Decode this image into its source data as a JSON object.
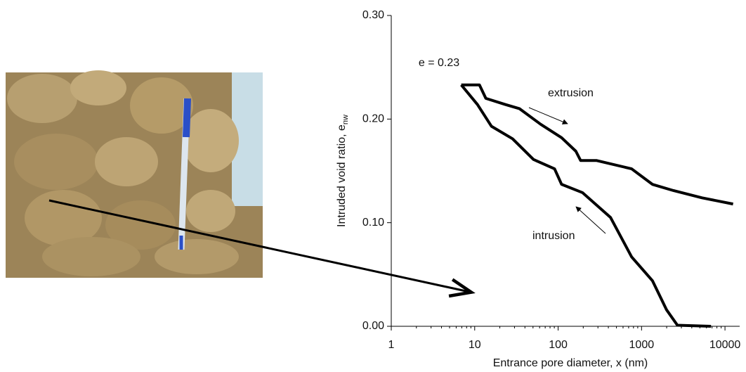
{
  "chart_data": {
    "type": "line",
    "y_label": "Intruded void ratio, e",
    "y_label_sub": "nw",
    "x_label": "Entrance pore diameter, x (nm)",
    "annotations": [
      "e = 0.23",
      "extrusion",
      "intrusion"
    ],
    "log_x": true,
    "xlim": [
      1,
      15000
    ],
    "xticks": [
      1,
      10,
      100,
      1000,
      10000
    ],
    "ylim": [
      0,
      0.3
    ],
    "yticks": [
      {
        "value": 0,
        "label": "0.00"
      },
      {
        "value": 0.1,
        "label": "0.10"
      },
      {
        "value": 0.2,
        "label": "0.20"
      },
      {
        "value": 0.3,
        "label": "0.30"
      }
    ],
    "series": [
      {
        "name": "extrusion",
        "color": "#000000",
        "x": [
          6.9,
          11.4,
          13.6,
          23.4,
          34.5,
          61.7,
          110,
          163,
          186,
          290,
          760,
          1350,
          2410,
          5300,
          12500
        ],
        "values": [
          0.233,
          0.233,
          0.22,
          0.214,
          0.21,
          0.195,
          0.182,
          0.169,
          0.16,
          0.16,
          0.152,
          0.137,
          0.131,
          0.124,
          0.118
        ]
      },
      {
        "name": "intrusion",
        "color": "#000000",
        "x": [
          6.9,
          10.8,
          15.9,
          28.4,
          50.7,
          90.6,
          110,
          196,
          425,
          760,
          1350,
          1990,
          2690,
          6800
        ],
        "values": [
          0.233,
          0.214,
          0.193,
          0.181,
          0.161,
          0.152,
          0.137,
          0.129,
          0.105,
          0.067,
          0.044,
          0.016,
          0.001,
          0
        ]
      }
    ]
  }
}
